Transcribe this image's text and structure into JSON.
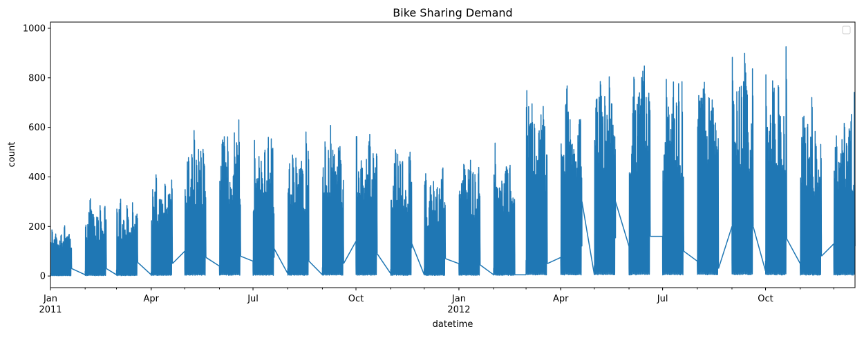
{
  "chart_data": {
    "type": "line",
    "title": "Bike Sharing Demand",
    "xlabel": "datetime",
    "ylabel": "count",
    "xlim": [
      "2011-01-01T00:00",
      "2012-12-19T23:00"
    ],
    "ylim": [
      -47,
      1025
    ],
    "yticks": [
      0,
      200,
      400,
      600,
      800,
      1000
    ],
    "ytick_labels": [
      "0",
      "200",
      "400",
      "600",
      "800",
      "1000"
    ],
    "xticks_major": [
      {
        "date": "2011-01-01",
        "label": "Jan",
        "sublabel": "2011"
      },
      {
        "date": "2011-04-01",
        "label": "Apr",
        "sublabel": ""
      },
      {
        "date": "2011-07-01",
        "label": "Jul",
        "sublabel": ""
      },
      {
        "date": "2011-10-01",
        "label": "Oct",
        "sublabel": ""
      },
      {
        "date": "2012-01-01",
        "label": "Jan",
        "sublabel": "2012"
      },
      {
        "date": "2012-04-01",
        "label": "Apr",
        "sublabel": ""
      },
      {
        "date": "2012-07-01",
        "label": "Jul",
        "sublabel": ""
      },
      {
        "date": "2012-10-01",
        "label": "Oct",
        "sublabel": ""
      }
    ],
    "legend": {
      "placement": "top-right",
      "entries": []
    },
    "grid": false,
    "color": "#1f77b4",
    "sampling_note_days": [
      1,
      19
    ],
    "series": [
      {
        "name": "count",
        "monthly": [
          {
            "month": "2011-01",
            "max": 220,
            "start": 10,
            "end": 30
          },
          {
            "month": "2011-02",
            "max": 330,
            "start": 5,
            "end": 30
          },
          {
            "month": "2011-03",
            "max": 335,
            "start": 5,
            "end": 55
          },
          {
            "month": "2011-04",
            "max": 455,
            "start": 5,
            "end": 50
          },
          {
            "month": "2011-05",
            "max": 610,
            "start": 100,
            "end": 75
          },
          {
            "month": "2011-06",
            "max": 640,
            "start": 40,
            "end": 80
          },
          {
            "month": "2011-07",
            "max": 600,
            "start": 60,
            "end": 110
          },
          {
            "month": "2011-08",
            "max": 590,
            "start": 10,
            "end": 60
          },
          {
            "month": "2011-09",
            "max": 630,
            "start": 5,
            "end": 50
          },
          {
            "month": "2011-10",
            "max": 625,
            "start": 140,
            "end": 90
          },
          {
            "month": "2011-11",
            "max": 555,
            "start": 10,
            "end": 130
          },
          {
            "month": "2011-12",
            "max": 460,
            "start": 5,
            "end": 70
          },
          {
            "month": "2012-01",
            "max": 515,
            "start": 50,
            "end": 45
          },
          {
            "month": "2012-02",
            "max": 540,
            "start": 5,
            "end": 5
          },
          {
            "month": "2012-03",
            "max": 800,
            "start": 5,
            "end": 50
          },
          {
            "month": "2012-04",
            "max": 825,
            "start": 75,
            "end": 300
          },
          {
            "month": "2012-05",
            "max": 875,
            "start": 5,
            "end": 300
          },
          {
            "month": "2012-06",
            "max": 900,
            "start": 120,
            "end": 160
          },
          {
            "month": "2012-07",
            "max": 875,
            "start": 160,
            "end": 100
          },
          {
            "month": "2012-08",
            "max": 890,
            "start": 60,
            "end": 30
          },
          {
            "month": "2012-09",
            "max": 977,
            "start": 200,
            "end": 200
          },
          {
            "month": "2012-10",
            "max": 950,
            "start": 20,
            "end": 150
          },
          {
            "month": "2012-11",
            "max": 740,
            "start": 50,
            "end": 80
          },
          {
            "month": "2012-12",
            "max": 760,
            "start": 130,
            "end": 120
          }
        ]
      }
    ]
  }
}
